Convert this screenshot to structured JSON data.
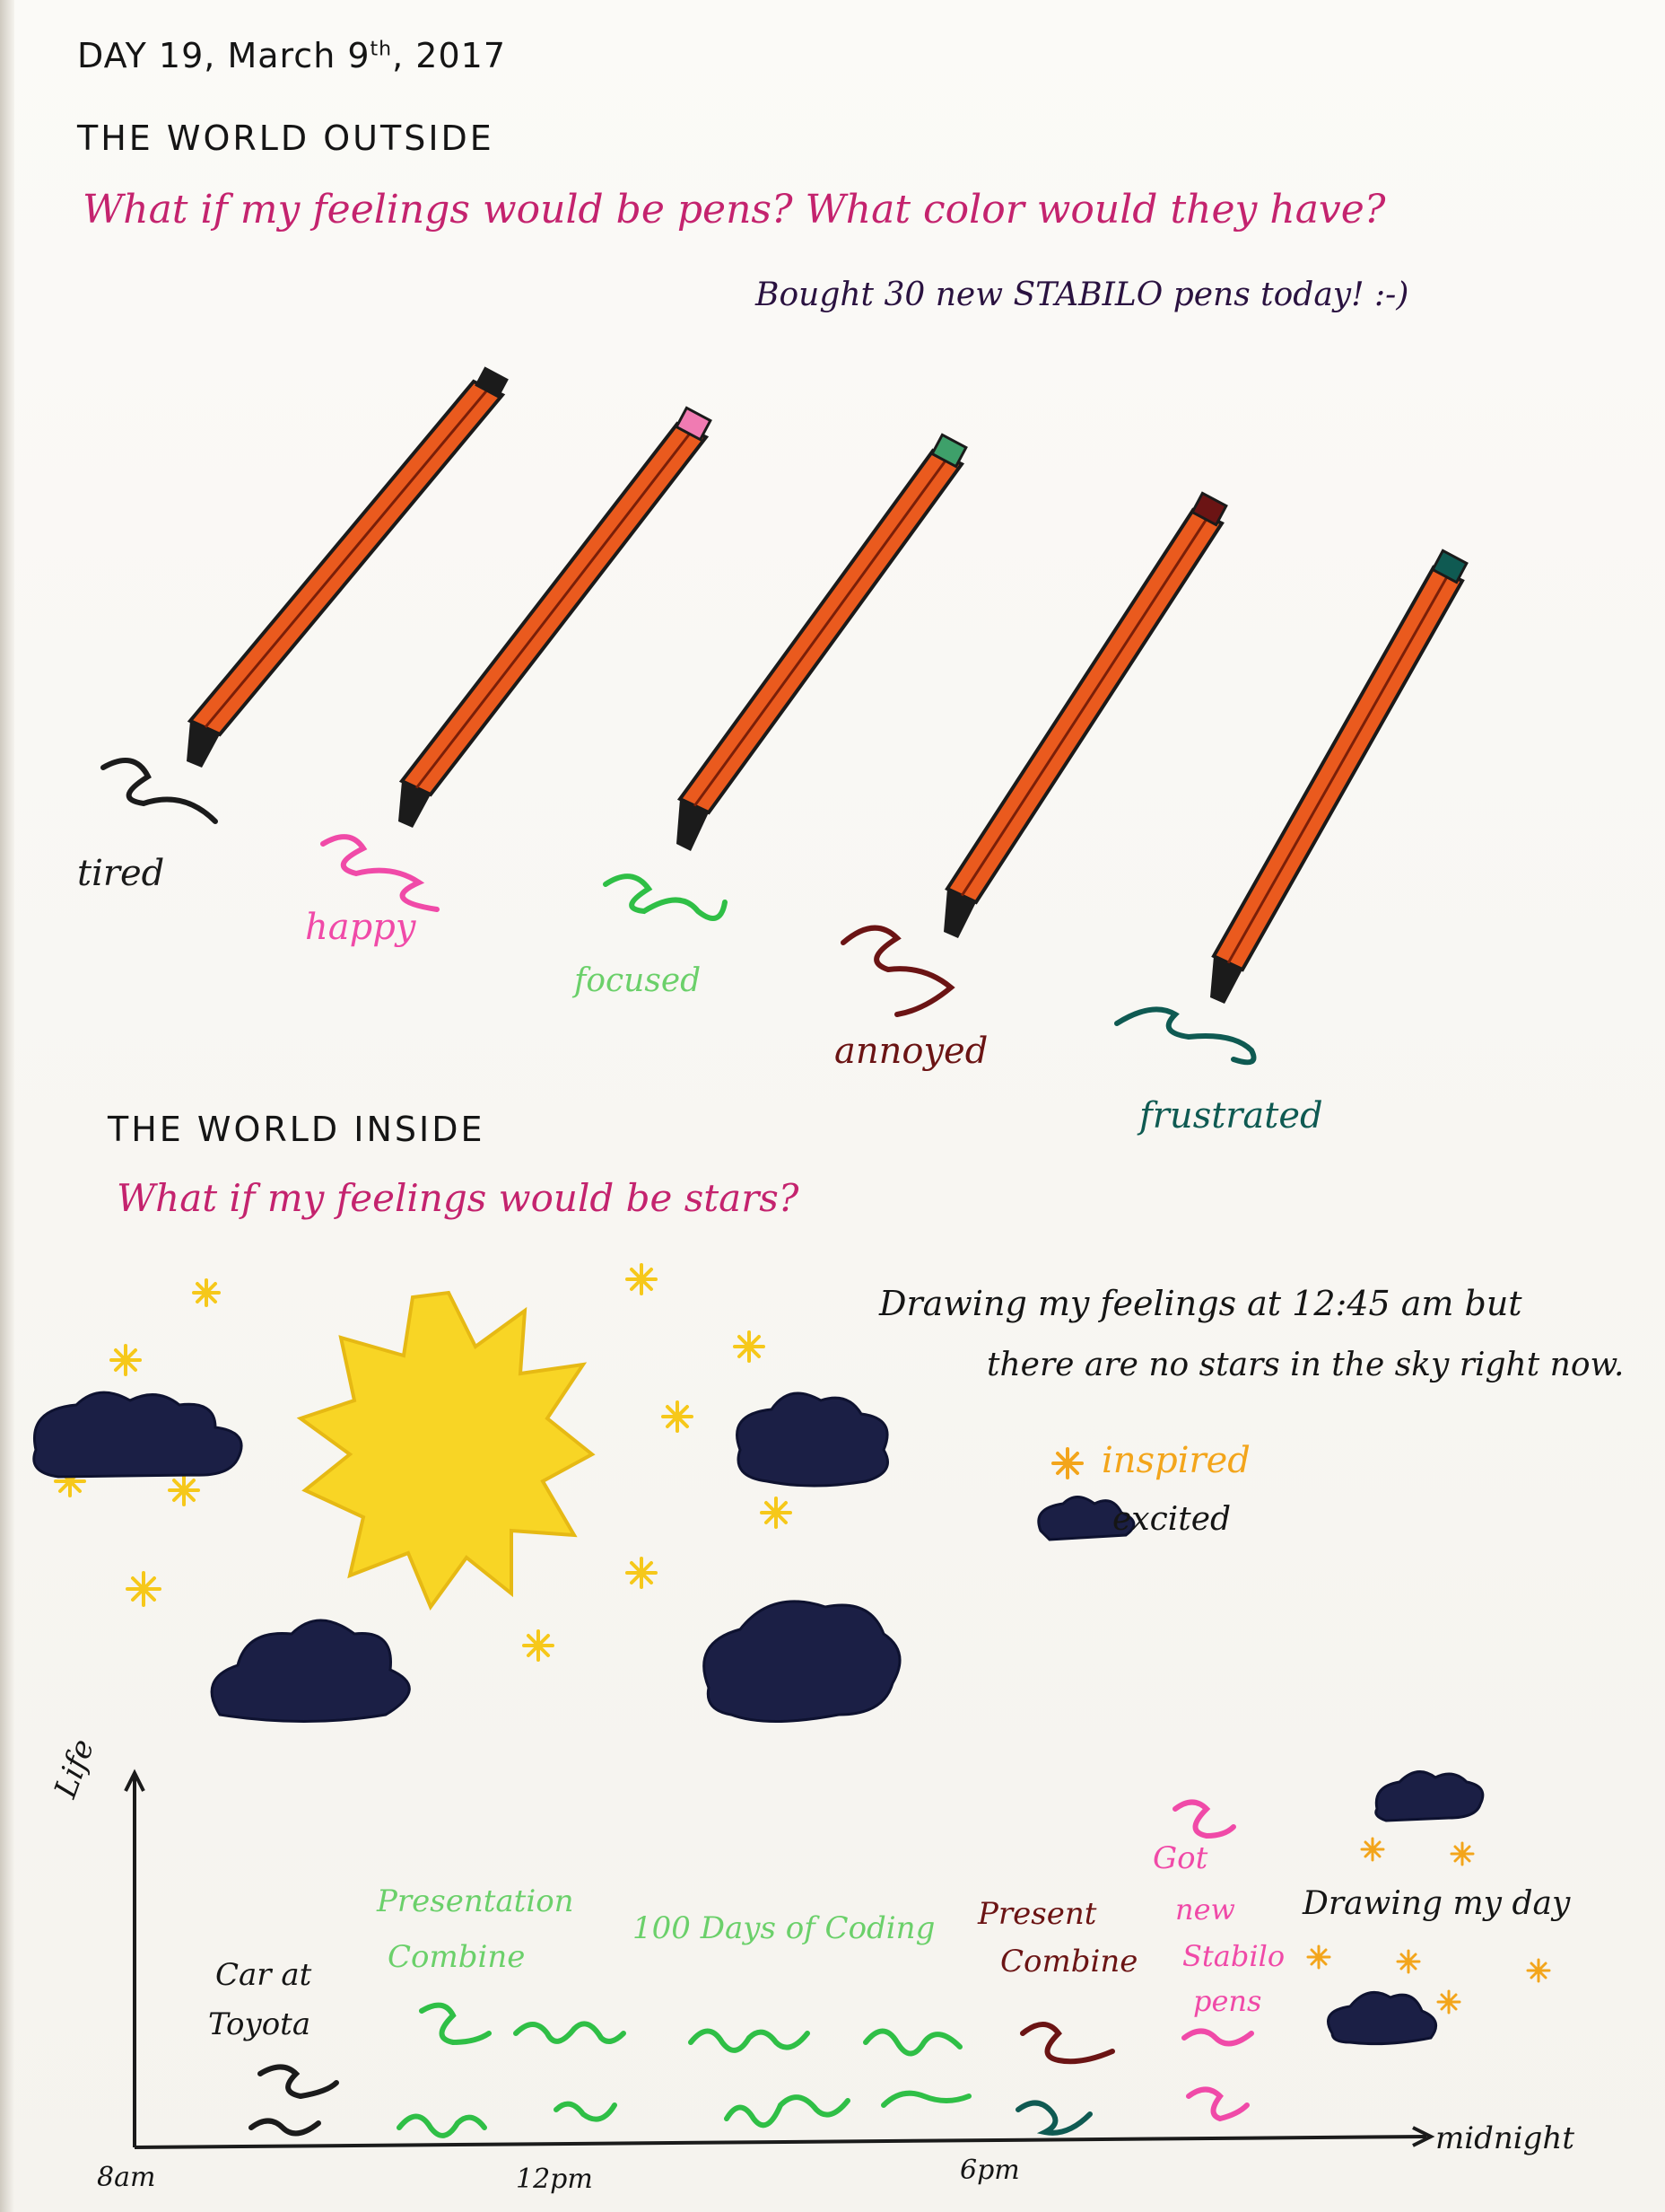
{
  "header": {
    "day_label": "DAY 19, March 9",
    "ordinal": "th",
    "year": ", 2017"
  },
  "world_outside": {
    "title": "THE WORLD OUTSIDE",
    "question": "What if my feelings would be pens? What color would they have?",
    "note": "Bought 30 new STABILO pens today! :-)",
    "pens": [
      {
        "label": "tired",
        "color": "#1b1b1b"
      },
      {
        "label": "happy",
        "color": "#f04aa8"
      },
      {
        "label": "focused",
        "color": "#5fd46a"
      },
      {
        "label": "annoyed",
        "color": "#6b1414"
      },
      {
        "label": "frustrated",
        "color": "#0f5a52"
      }
    ]
  },
  "world_inside": {
    "title": "THE WORLD INSIDE",
    "question": "What if my feelings would be stars?",
    "note_line1": "Drawing my feelings at 12:45 am but",
    "note_line2": "there are no stars in the sky right now.",
    "legend": [
      {
        "label": "inspired",
        "color": "#f3a51b",
        "icon": "star-icon"
      },
      {
        "label": "excited",
        "color": "#1a1e3a",
        "icon": "cloud-icon"
      }
    ],
    "colors": {
      "sun": "#f8d525",
      "star": "#f6c81a",
      "cloud": "#1b1f45"
    }
  },
  "timeline": {
    "y_label": "Life",
    "x_ticks": [
      "8am",
      "12pm",
      "6pm",
      "midnight"
    ],
    "events": [
      {
        "label_line1": "Car at",
        "label_line2": "Toyota",
        "color": "#1b1b1b"
      },
      {
        "label_line1": "Presentation",
        "label_line2": "Combine",
        "color": "#5fd46a"
      },
      {
        "label_line1": "100 Days of Coding",
        "label_line2": "",
        "color": "#5fd46a"
      },
      {
        "label_line1": "Present",
        "label_line2": "Combine",
        "color": "#6b1414"
      },
      {
        "label_line1": "Got",
        "label_line2": "new",
        "label_line3": "Stabilo",
        "label_line4": "pens",
        "color": "#f04aa8"
      },
      {
        "label_line1": "Drawing my day",
        "label_line2": "",
        "color": "#1b1b1b"
      }
    ]
  }
}
